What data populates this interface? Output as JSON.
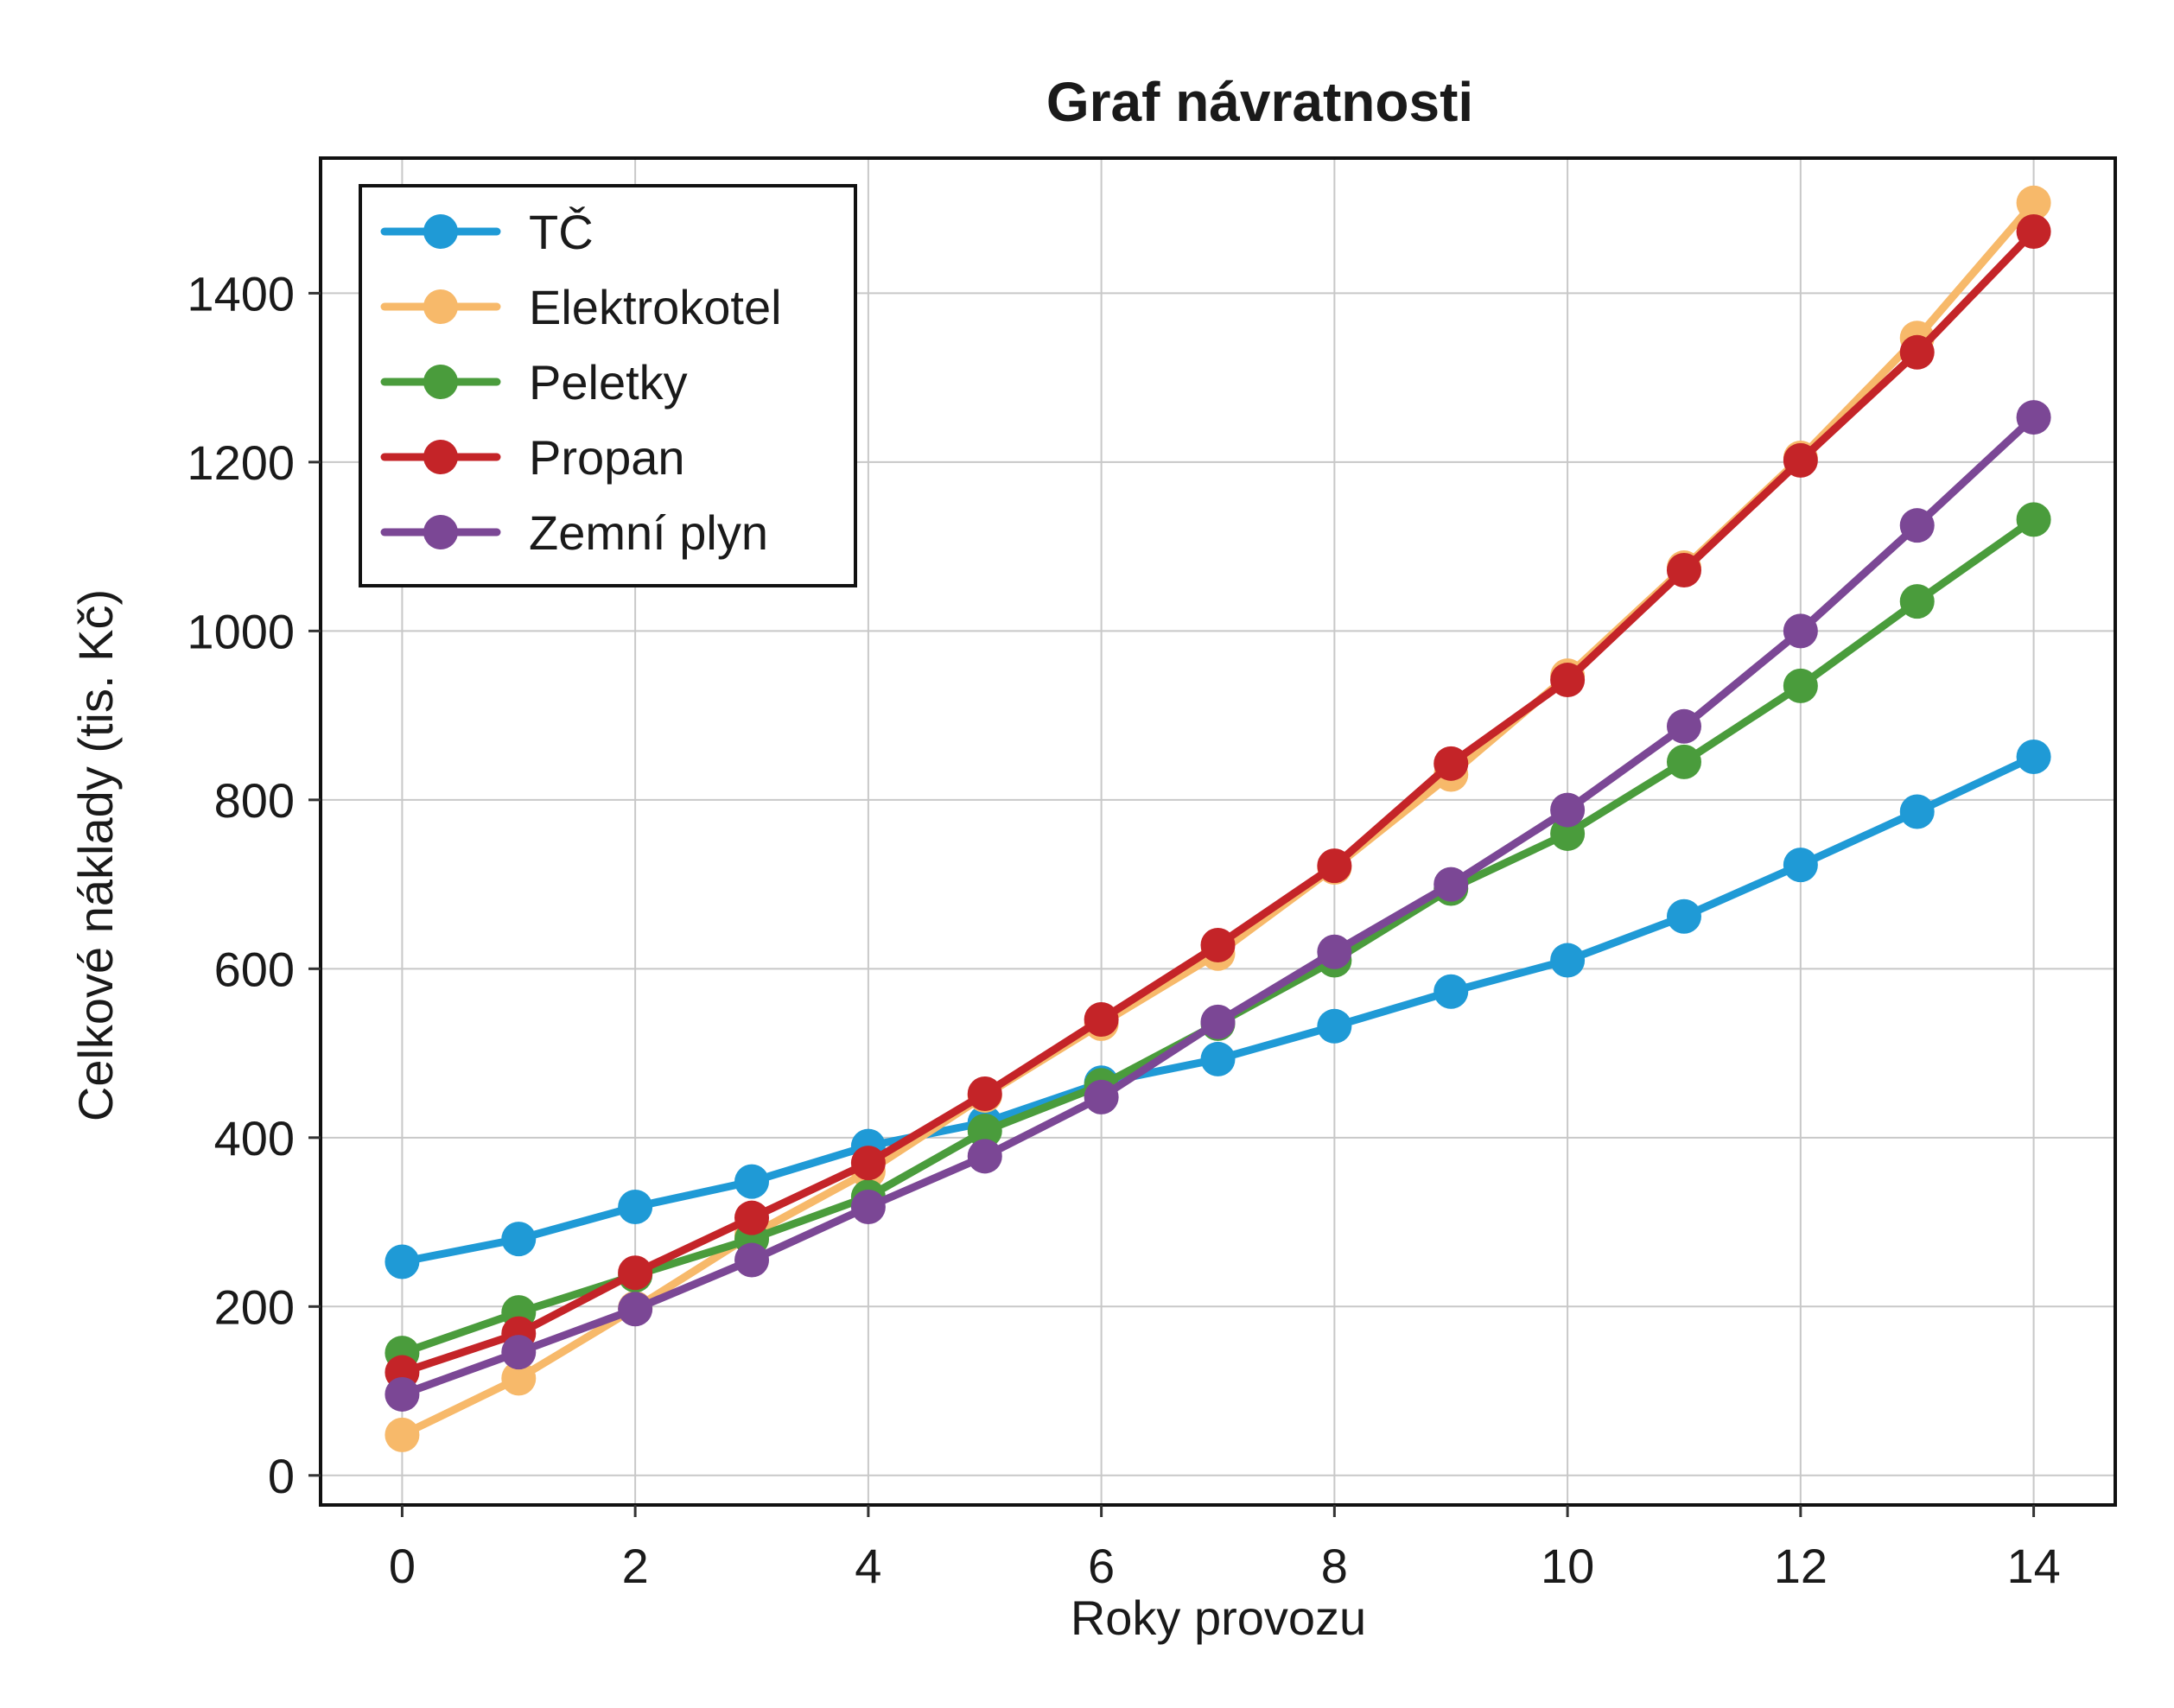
{
  "chart_data": {
    "type": "line",
    "title": "Graf návratnosti",
    "xlabel": "Roky provozu",
    "ylabel": "Celkové náklady (tis. Kč)",
    "x": [
      0,
      1,
      2,
      3,
      4,
      5,
      6,
      7,
      8,
      9,
      10,
      11,
      12,
      13,
      14
    ],
    "xlim": [
      -0.7,
      14.7
    ],
    "ylim": [
      -35,
      1560
    ],
    "xticks": [
      "0",
      "2",
      "4",
      "6",
      "8",
      "10",
      "12",
      "14"
    ],
    "xtick_values": [
      0,
      2,
      4,
      6,
      8,
      10,
      12,
      14
    ],
    "yticks": [
      "0",
      "200",
      "400",
      "600",
      "800",
      "1000",
      "1200",
      "1400"
    ],
    "ytick_values": [
      0,
      200,
      400,
      600,
      800,
      1000,
      1200,
      1400
    ],
    "grid": true,
    "legend_position": "top-left",
    "series": [
      {
        "name": "TČ",
        "color": "#1f9ad6",
        "values": [
          253,
          280,
          318,
          348,
          390,
          418,
          465,
          493,
          532,
          573,
          610,
          662,
          723,
          786,
          851
        ]
      },
      {
        "name": "Elektrokotel",
        "color": "#f7b96a",
        "values": [
          48,
          115,
          198,
          285,
          360,
          450,
          535,
          618,
          720,
          830,
          947,
          1075,
          1205,
          1347,
          1507
        ]
      },
      {
        "name": "Peletky",
        "color": "#4a9c3c",
        "values": [
          145,
          193,
          237,
          280,
          330,
          408,
          462,
          535,
          610,
          695,
          760,
          845,
          935,
          1035,
          1132
        ]
      },
      {
        "name": "Propan",
        "color": "#c42428",
        "values": [
          122,
          168,
          240,
          305,
          370,
          452,
          540,
          628,
          722,
          843,
          942,
          1072,
          1202,
          1330,
          1473
        ]
      },
      {
        "name": "Zemní plyn",
        "color": "#7b4795",
        "values": [
          96,
          146,
          197,
          255,
          318,
          378,
          448,
          537,
          620,
          700,
          788,
          887,
          1000,
          1125,
          1253
        ]
      }
    ]
  }
}
